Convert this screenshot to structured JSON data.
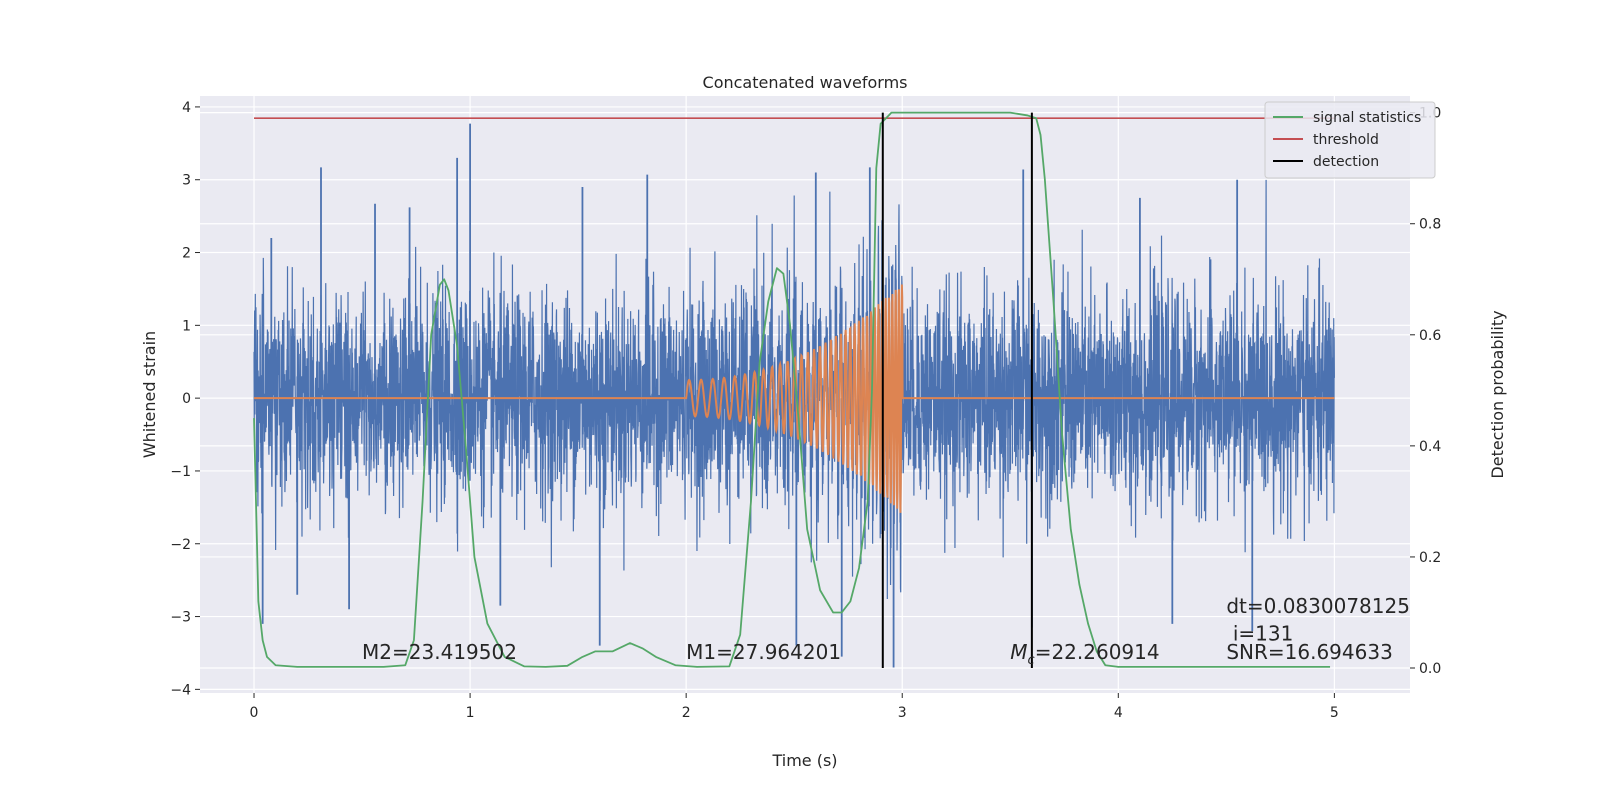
{
  "chart_data": {
    "type": "line",
    "title": "Concatenated waveforms",
    "xlabel": "Time (s)",
    "ylabel_left": "Whitened strain",
    "ylabel_right": "Detection probability",
    "xlim": [
      -0.25,
      5.35
    ],
    "ylim_left": [
      -4.05,
      4.15
    ],
    "ylim_right": [
      -0.045,
      1.03
    ],
    "x_ticks": [
      0,
      1,
      2,
      3,
      4,
      5
    ],
    "y_left_ticks": [
      -4,
      -3,
      -2,
      -1,
      0,
      1,
      2,
      3,
      4
    ],
    "y_right_ticks": [
      0.0,
      0.2,
      0.4,
      0.6,
      0.8,
      1.0
    ],
    "x_tick_labels": [
      "0",
      "1",
      "2",
      "3",
      "4",
      "5"
    ],
    "y_left_tick_labels": [
      "−4",
      "−3",
      "−2",
      "−1",
      "0",
      "1",
      "2",
      "3",
      "4"
    ],
    "y_right_tick_labels": [
      "0.0",
      "0.2",
      "0.4",
      "0.6",
      "0.8",
      "1.0"
    ],
    "grid": true,
    "legend_position": "top-right",
    "legend": [
      {
        "label": "signal statistics",
        "color": "#55a868"
      },
      {
        "label": "threshold",
        "color": "#c44e52"
      },
      {
        "label": "detection",
        "color": "#000000"
      }
    ],
    "colors": {
      "noise": "#4c72b0",
      "template": "#dd8452",
      "signal_statistics": "#55a868",
      "threshold": "#c44e52",
      "detection": "#000000",
      "background": "#eaeaf2"
    },
    "series": [
      {
        "name": "whitened strain (noise + signal)",
        "axis": "left",
        "x_range": [
          0,
          5
        ],
        "values_summary": "dense noise, roughly ±0.7 typical amplitude, peaks up to about 3.8 and down to about -3.7",
        "peaks_high": [
          [
            0.08,
            2.2
          ],
          [
            0.31,
            3.17
          ],
          [
            0.56,
            2.67
          ],
          [
            0.72,
            2.62
          ],
          [
            0.94,
            3.3
          ],
          [
            1.0,
            3.77
          ],
          [
            1.52,
            2.9
          ],
          [
            1.82,
            3.07
          ],
          [
            2.6,
            3.1
          ],
          [
            2.85,
            3.17
          ],
          [
            3.56,
            3.14
          ],
          [
            4.1,
            2.75
          ],
          [
            4.55,
            3.0
          ]
        ],
        "peaks_low": [
          [
            0.04,
            -3.1
          ],
          [
            0.2,
            -2.7
          ],
          [
            0.44,
            -2.9
          ],
          [
            1.14,
            -2.85
          ],
          [
            1.6,
            -3.4
          ],
          [
            2.51,
            -3.4
          ],
          [
            2.72,
            -3.55
          ],
          [
            2.96,
            -3.7
          ],
          [
            3.6,
            -3.15
          ],
          [
            4.25,
            -3.1
          ],
          [
            4.62,
            -3.2
          ]
        ]
      },
      {
        "name": "injected template",
        "axis": "left",
        "t_start": 2.0,
        "t_end": 3.0,
        "amp_start": 0.25,
        "amp_end": 1.6,
        "freq_start": 18,
        "freq_end": 70
      },
      {
        "name": "signal statistics",
        "axis": "right",
        "x": [
          0.0,
          0.02,
          0.04,
          0.06,
          0.1,
          0.2,
          0.4,
          0.6,
          0.7,
          0.74,
          0.78,
          0.82,
          0.86,
          0.88,
          0.9,
          0.94,
          0.98,
          1.02,
          1.08,
          1.16,
          1.25,
          1.35,
          1.45,
          1.52,
          1.58,
          1.66,
          1.74,
          1.8,
          1.86,
          1.95,
          2.05,
          2.2,
          2.25,
          2.3,
          2.34,
          2.38,
          2.42,
          2.45,
          2.48,
          2.52,
          2.56,
          2.62,
          2.68,
          2.72,
          2.76,
          2.8,
          2.84,
          2.86,
          2.88,
          2.9,
          2.95,
          3.05,
          3.5,
          3.58,
          3.62,
          3.64,
          3.66,
          3.7,
          3.74,
          3.78,
          3.82,
          3.86,
          3.9,
          3.94,
          4.0,
          4.5,
          4.98
        ],
        "y": [
          0.45,
          0.12,
          0.05,
          0.02,
          0.005,
          0.002,
          0.002,
          0.002,
          0.005,
          0.05,
          0.3,
          0.6,
          0.69,
          0.7,
          0.68,
          0.58,
          0.4,
          0.2,
          0.08,
          0.02,
          0.003,
          0.002,
          0.004,
          0.02,
          0.03,
          0.03,
          0.045,
          0.035,
          0.02,
          0.005,
          0.002,
          0.003,
          0.06,
          0.3,
          0.55,
          0.66,
          0.72,
          0.71,
          0.62,
          0.45,
          0.25,
          0.14,
          0.1,
          0.1,
          0.12,
          0.18,
          0.3,
          0.5,
          0.9,
          0.98,
          1.0,
          1.0,
          1.0,
          0.995,
          0.99,
          0.96,
          0.88,
          0.66,
          0.42,
          0.25,
          0.15,
          0.08,
          0.03,
          0.005,
          0.002,
          0.002,
          0.002
        ]
      },
      {
        "name": "threshold",
        "axis": "right",
        "x": [
          0,
          5
        ],
        "y": [
          0.99,
          0.99
        ]
      }
    ],
    "detections_x": [
      2.91,
      3.6
    ],
    "annotations": [
      {
        "text": "M2=23.419502",
        "x": 0.5,
        "y": -3.58
      },
      {
        "text": "M1=27.964201",
        "x": 2.0,
        "y": -3.58
      },
      {
        "text": "=22.260914",
        "prefix_italic": "M",
        "subscript": "c",
        "x": 3.5,
        "y": -3.58
      },
      {
        "text": "dt=0.0830078125",
        "x": 4.5,
        "y": -2.95
      },
      {
        "text": "i=131",
        "x": 4.53,
        "y": -3.33
      },
      {
        "text": "SNR=16.694633",
        "x": 4.5,
        "y": -3.58
      }
    ]
  }
}
